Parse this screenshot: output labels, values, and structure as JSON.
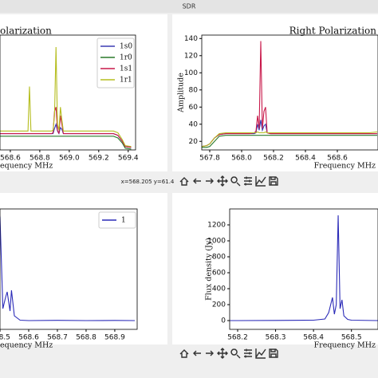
{
  "window": {
    "title": "SDR"
  },
  "status": {
    "coordinates": "x=568.205 y=61.4"
  },
  "chart_data": [
    {
      "type": "line",
      "title": "olarization",
      "x_label": "equency MHz",
      "x": [
        568.53,
        568.6,
        568.7,
        568.72,
        568.73,
        568.74,
        568.8,
        568.86,
        568.88,
        568.89,
        568.9,
        568.91,
        568.92,
        568.93,
        568.94,
        568.95,
        568.96,
        568.98,
        569.0,
        569.1,
        569.2,
        569.3,
        569.33,
        569.36,
        569.38,
        569.42
      ],
      "xlim": [
        568.53,
        569.45
      ],
      "ylim": [
        10,
        144
      ],
      "xticks": [
        568.6,
        568.8,
        {
          "value": 569,
          "label": "569.0"
        },
        569.2,
        569.4
      ],
      "legend": "upper right",
      "series": [
        {
          "name": "1s0",
          "color": "#3b3bb3",
          "values": [
            29,
            29,
            29,
            29,
            29,
            29,
            29,
            29,
            29,
            29,
            35,
            40,
            32,
            29,
            36,
            34,
            29,
            29,
            29,
            29,
            29,
            29,
            27,
            20,
            14,
            13
          ]
        },
        {
          "name": "1r0",
          "color": "#2a7a2a",
          "values": [
            26,
            26,
            26,
            26,
            26,
            26,
            26,
            26,
            26,
            26,
            26,
            26,
            26,
            26,
            26,
            26,
            26,
            26,
            26,
            26,
            26,
            26,
            24,
            18,
            12,
            11
          ]
        },
        {
          "name": "1s1",
          "color": "#c8184a",
          "values": [
            29,
            29,
            29,
            29,
            29,
            29,
            29,
            29,
            29,
            30,
            55,
            60,
            33,
            29,
            50,
            40,
            29,
            29,
            29,
            29,
            29,
            29,
            27,
            20,
            14,
            13
          ]
        },
        {
          "name": "1r1",
          "color": "#b5bd1e",
          "values": [
            32,
            32,
            32,
            32,
            84,
            32,
            32,
            32,
            32,
            33,
            50,
            130,
            40,
            33,
            60,
            45,
            32,
            32,
            32,
            32,
            32,
            32,
            30,
            22,
            15,
            14
          ]
        }
      ]
    },
    {
      "type": "line",
      "title": "Right Polarization",
      "x_label": "Frequency MHz",
      "y_label": "Amplitude",
      "x": [
        567.75,
        567.78,
        567.8,
        567.83,
        567.86,
        567.9,
        568.0,
        568.05,
        568.08,
        568.09,
        568.1,
        568.11,
        568.12,
        568.13,
        568.14,
        568.15,
        568.16,
        568.18,
        568.2,
        568.3,
        568.4,
        568.5,
        568.6,
        568.7,
        568.8,
        568.85
      ],
      "xlim": [
        567.75,
        568.855
      ],
      "ylim": [
        10,
        144
      ],
      "xticks": [
        567.8,
        {
          "value": 568,
          "label": "568.0"
        },
        568.2,
        568.4,
        568.6
      ],
      "yticks": [
        20,
        40,
        60,
        80,
        100,
        120,
        140
      ],
      "series": [
        {
          "color": "#3b3bb3",
          "values": [
            14,
            15,
            17,
            24,
            28,
            29,
            29,
            29,
            29,
            30,
            40,
            33,
            45,
            33,
            38,
            40,
            30,
            29,
            29,
            29,
            29,
            29,
            29,
            29,
            29,
            29
          ]
        },
        {
          "color": "#2a7a2a",
          "values": [
            13,
            13,
            14,
            20,
            26,
            27,
            27,
            27,
            27,
            27,
            27,
            27,
            27,
            27,
            27,
            27,
            27,
            27,
            27,
            27,
            27,
            27,
            27,
            27,
            27,
            27
          ]
        },
        {
          "color": "#c8184a",
          "values": [
            14,
            15,
            17,
            24,
            28,
            29,
            29,
            29,
            30,
            32,
            50,
            35,
            137,
            35,
            55,
            60,
            30,
            29,
            29,
            29,
            29,
            29,
            29,
            29,
            29,
            29
          ]
        },
        {
          "color": "#b5bd1e",
          "values": [
            14,
            15,
            17,
            24,
            29,
            30,
            30,
            30,
            30,
            30,
            31,
            30,
            30,
            30,
            30,
            31,
            30,
            30,
            30,
            30,
            30,
            30,
            30,
            30,
            30,
            31
          ]
        }
      ]
    },
    {
      "type": "line",
      "x_label": "equency MHz",
      "x": [
        568.47,
        568.485,
        568.495,
        568.5,
        568.51,
        568.52,
        568.525,
        568.535,
        568.54,
        568.55,
        568.57,
        568.6,
        568.7,
        568.8,
        568.9,
        568.97
      ],
      "xlim": [
        568.5,
        568.978
      ],
      "ylim": [
        -110,
        1400
      ],
      "xticks": [
        568.5,
        568.6,
        568.7,
        568.8,
        568.9
      ],
      "legend": "upper right",
      "series": [
        {
          "name": "1",
          "color": "#2b2bb8",
          "values": [
            0,
            200,
            1350,
            1300,
            150,
            300,
            360,
            120,
            380,
            60,
            5,
            0,
            3,
            0,
            2,
            0
          ]
        }
      ]
    },
    {
      "type": "line",
      "x_label": "Frequency MHz",
      "y_label": "Flux density (Jy)",
      "x": [
        568.18,
        568.2,
        568.3,
        568.4,
        568.43,
        568.44,
        568.45,
        568.455,
        568.46,
        568.465,
        568.47,
        568.475,
        568.48,
        568.49,
        568.5,
        568.57
      ],
      "xlim": [
        568.179,
        568.57
      ],
      "ylim": [
        -110,
        1400
      ],
      "xticks": [
        568.2,
        568.3,
        568.4,
        568.5
      ],
      "yticks": [
        0,
        200,
        400,
        600,
        800,
        1000,
        1200
      ],
      "series": [
        {
          "color": "#2b2bb8",
          "values": [
            0,
            0,
            2,
            5,
            20,
            100,
            290,
            80,
            200,
            1320,
            150,
            260,
            60,
            15,
            5,
            0
          ]
        }
      ]
    }
  ]
}
